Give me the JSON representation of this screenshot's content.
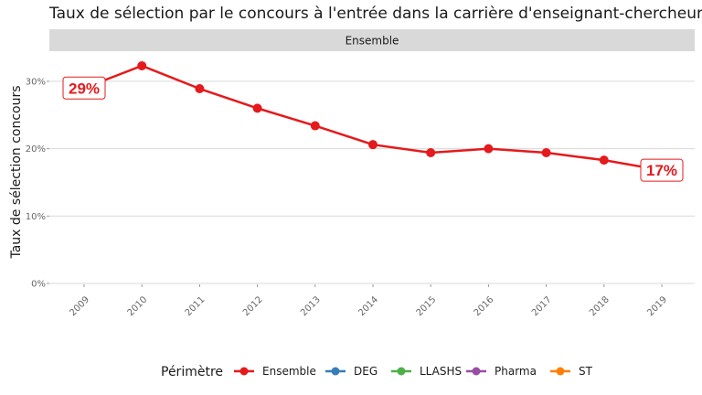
{
  "chart_data": {
    "type": "line",
    "title": "Taux de sélection par le concours à l'entrée dans la carrière d'enseignant-chercheur",
    "facet": "Ensemble",
    "xlabel": "",
    "ylabel": "Taux de sélection concours",
    "x": [
      "2009",
      "2010",
      "2011",
      "2012",
      "2013",
      "2014",
      "2015",
      "2016",
      "2017",
      "2018",
      "2019"
    ],
    "series": [
      {
        "name": "Ensemble",
        "color": "#e41a1c",
        "values": [
          0.29,
          0.323,
          0.289,
          0.26,
          0.234,
          0.206,
          0.194,
          0.2,
          0.194,
          0.183,
          0.168
        ]
      }
    ],
    "ylim": [
      0,
      0.3365
    ],
    "yticks": [
      0,
      0.1,
      0.2,
      0.3
    ],
    "ytick_labels": [
      "0%",
      "10%",
      "20%",
      "30%"
    ],
    "grid": true,
    "annotations": [
      {
        "x": "2009",
        "text": "29%"
      },
      {
        "x": "2019",
        "text": "17%"
      }
    ],
    "legend": {
      "title": "Périmètre",
      "position": "bottom",
      "items": [
        {
          "label": "Ensemble",
          "color": "#e41a1c"
        },
        {
          "label": "DEG",
          "color": "#377eb8"
        },
        {
          "label": "LLASHS",
          "color": "#4daf4a"
        },
        {
          "label": "Pharma",
          "color": "#984ea3"
        },
        {
          "label": "ST",
          "color": "#ff7f00"
        }
      ]
    }
  }
}
